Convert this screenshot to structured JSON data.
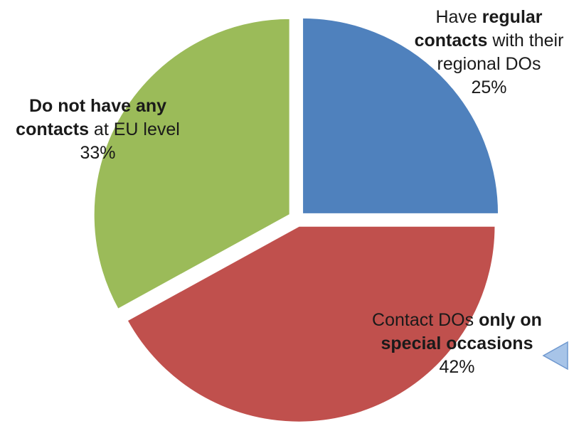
{
  "chart_data": {
    "type": "pie",
    "title": "",
    "start_angle_deg": 0,
    "direction": "clockwise",
    "slices": [
      {
        "id": "regular",
        "label_normal_1": "Have ",
        "label_bold_1": "regular contacts",
        "label_normal_2": " with their regional DOs",
        "value": 25,
        "value_label": "25%",
        "color": "#4f81bd"
      },
      {
        "id": "special",
        "label_normal_1": "Contact DOs ",
        "label_bold_1": "only on special occasions",
        "label_normal_2": "",
        "value": 42,
        "value_label": "42%",
        "color": "#c0504d"
      },
      {
        "id": "none",
        "label_normal_1": "",
        "label_bold_1": "Do not have any contacts",
        "label_normal_2": " at EU level",
        "value": 33,
        "value_label": "33%",
        "color": "#9bbb59"
      }
    ]
  },
  "colors": {
    "background": "#ffffff",
    "slice_border": "#ffffff",
    "arrow_fill": "#a7c4e8",
    "arrow_stroke": "#6f98cf"
  },
  "decorations": {
    "arrow_icon": "chevron-arrow-left-icon"
  }
}
